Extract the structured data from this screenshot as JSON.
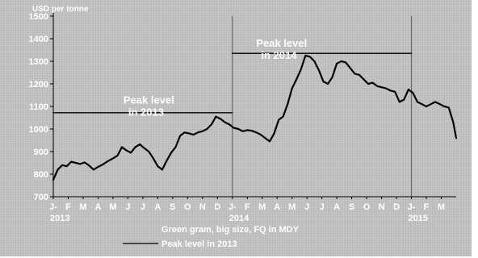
{
  "chart_data": {
    "type": "line",
    "title": "",
    "ylabel": "USD per tonne",
    "xlabel": "",
    "ylim": [
      700,
      1500
    ],
    "yticks": [
      700,
      800,
      900,
      1000,
      1100,
      1200,
      1300,
      1400,
      1500
    ],
    "x_tick_labels": [
      "J-",
      "F",
      "M",
      "A",
      "M",
      "J",
      "J",
      "A",
      "S",
      "O",
      "N",
      "D",
      "J-",
      "F",
      "M",
      "A",
      "M",
      "J",
      "J",
      "A",
      "S",
      "O",
      "N",
      "D",
      "J-",
      "F",
      "M"
    ],
    "year_labels": [
      {
        "label": "2013",
        "tick": 0
      },
      {
        "label": "2014",
        "tick": 12
      },
      {
        "label": "2015",
        "tick": 24
      }
    ],
    "year_dividers": [
      12,
      24
    ],
    "annotations": [
      {
        "text": [
          "Peak level",
          "in 2013"
        ],
        "x": 4.7,
        "y": 1112
      },
      {
        "text": [
          "Peak level",
          "in 2014"
        ],
        "x": 13.6,
        "y": 1365
      }
    ],
    "series": [
      {
        "name": "Green gram, big size, FQ in MDY",
        "color": "#000000",
        "x": [
          0,
          0.3,
          0.6,
          0.9,
          1.2,
          1.5,
          1.8,
          2.1,
          2.4,
          2.7,
          3.0,
          3.3,
          3.6,
          4.0,
          4.3,
          4.6,
          4.9,
          5.2,
          5.5,
          5.8,
          6.1,
          6.4,
          6.7,
          7.0,
          7.3,
          7.6,
          7.9,
          8.2,
          8.5,
          8.8,
          9.1,
          9.4,
          9.7,
          10.0,
          10.3,
          10.6,
          10.9,
          11.2,
          11.5,
          11.8,
          12.1,
          12.4,
          12.7,
          13.0,
          13.3,
          13.6,
          13.9,
          14.2,
          14.5,
          14.8,
          15.1,
          15.4,
          15.7,
          16.0,
          16.3,
          16.6,
          16.9,
          17.2,
          17.5,
          17.8,
          18.1,
          18.4,
          18.7,
          19.0,
          19.3,
          19.6,
          19.9,
          20.2,
          20.5,
          20.8,
          21.1,
          21.4,
          21.7,
          22.0,
          22.3,
          22.6,
          22.9,
          23.2,
          23.5,
          23.8,
          24.1,
          24.4,
          24.7,
          25.0,
          25.3,
          25.6,
          25.9,
          26.2,
          26.5,
          26.8,
          27.0
        ],
        "values": [
          775,
          820,
          840,
          835,
          855,
          850,
          845,
          852,
          838,
          820,
          832,
          842,
          855,
          870,
          882,
          920,
          905,
          895,
          920,
          932,
          915,
          900,
          870,
          835,
          820,
          860,
          895,
          920,
          970,
          985,
          980,
          975,
          985,
          990,
          1000,
          1020,
          1055,
          1045,
          1030,
          1020,
          1005,
          1000,
          990,
          995,
          992,
          985,
          975,
          960,
          945,
          980,
          1040,
          1055,
          1110,
          1180,
          1220,
          1265,
          1325,
          1320,
          1300,
          1260,
          1210,
          1200,
          1230,
          1290,
          1300,
          1295,
          1270,
          1245,
          1240,
          1220,
          1200,
          1205,
          1190,
          1185,
          1180,
          1170,
          1165,
          1120,
          1130,
          1175,
          1160,
          1120,
          1110,
          1100,
          1110,
          1120,
          1110,
          1100,
          1095,
          1030,
          960
        ]
      },
      {
        "name": "Peak level in 2013",
        "color": "#000000",
        "x": [
          0,
          12
        ],
        "values": [
          1072,
          1072
        ]
      },
      {
        "name": "",
        "color": "#000000",
        "x": [
          12,
          24
        ],
        "values": [
          1335,
          1335
        ]
      }
    ],
    "legend_placement": "bottom"
  }
}
